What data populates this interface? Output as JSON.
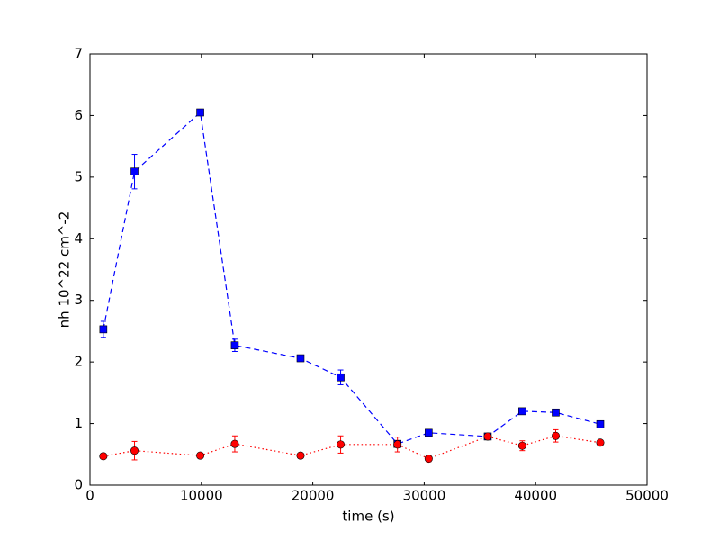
{
  "chart_data": {
    "type": "line",
    "x_label": "time (s)",
    "y_label": "nh 10^22 cm^-2",
    "x": [
      1200,
      4000,
      9900,
      13000,
      18900,
      22500,
      27600,
      30400,
      35700,
      38800,
      41800,
      45800
    ],
    "series": [
      {
        "color": "#0000ff",
        "marker": "square",
        "linestyle": "dashed",
        "values": [
          2.53,
          5.09,
          6.05,
          2.27,
          2.06,
          1.75,
          0.67,
          0.85,
          0.79,
          1.2,
          1.18,
          0.99
        ],
        "errors": [
          0.13,
          0.28,
          0.05,
          0.1,
          0.03,
          0.12,
          0.05,
          0.03,
          0.03,
          0.03,
          0.04,
          0.02
        ]
      },
      {
        "color": "#ff0000",
        "marker": "circle",
        "linestyle": "dotted",
        "values": [
          0.47,
          0.56,
          0.48,
          0.67,
          0.48,
          0.66,
          0.66,
          0.43,
          0.79,
          0.64,
          0.8,
          0.69
        ],
        "errors": [
          0.03,
          0.15,
          0.03,
          0.13,
          0.03,
          0.14,
          0.12,
          0.05,
          0.03,
          0.08,
          0.1,
          0.03
        ]
      }
    ],
    "xlim": [
      0,
      50000
    ],
    "xticks": [
      0,
      10000,
      20000,
      30000,
      40000,
      50000
    ],
    "ylim": [
      0,
      7
    ],
    "yticks": [
      0,
      1,
      2,
      3,
      4,
      5,
      6,
      7
    ]
  }
}
